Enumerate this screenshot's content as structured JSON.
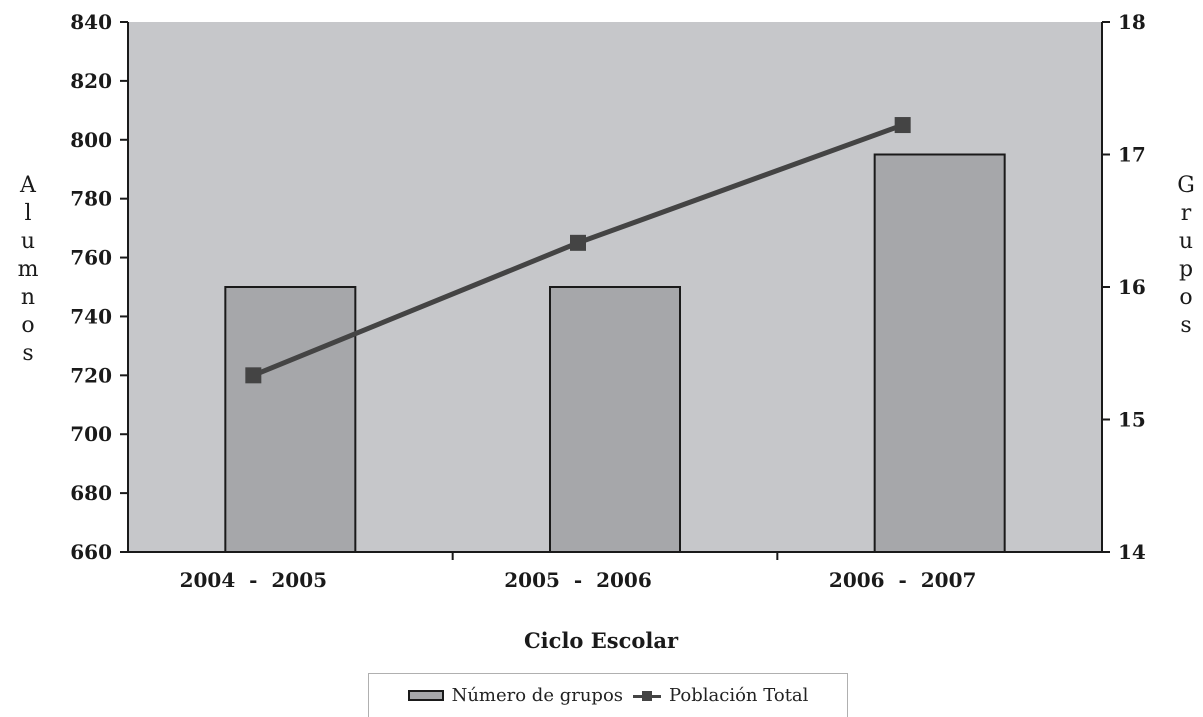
{
  "chart_data": {
    "type": "bar",
    "categories": [
      "2004  -  2005",
      "2005  -  2006",
      "2006  -  2007"
    ],
    "series": [
      {
        "name": "Número de grupos",
        "type": "bar",
        "axis": "right",
        "values": [
          16,
          16,
          17
        ]
      },
      {
        "name": "Población Total",
        "type": "line",
        "axis": "left",
        "values": [
          720,
          765,
          805
        ]
      }
    ],
    "xlabel": "Ciclo Escolar",
    "ylabel": "Alumnos",
    "y2label": "Grupos",
    "ylim": [
      660,
      840
    ],
    "y2lim": [
      14,
      18
    ],
    "yticks": [
      "840",
      "820",
      "800",
      "780",
      "760",
      "740",
      "720",
      "700",
      "680",
      "660"
    ],
    "y2ticks": [
      "18",
      "17",
      "16",
      "15",
      "14"
    ],
    "grid": false,
    "legend_position": "bottom",
    "colors": {
      "plot_bg": "#c6c7ca",
      "bar_fill": "#a6a7aa",
      "line": "#444444"
    }
  }
}
